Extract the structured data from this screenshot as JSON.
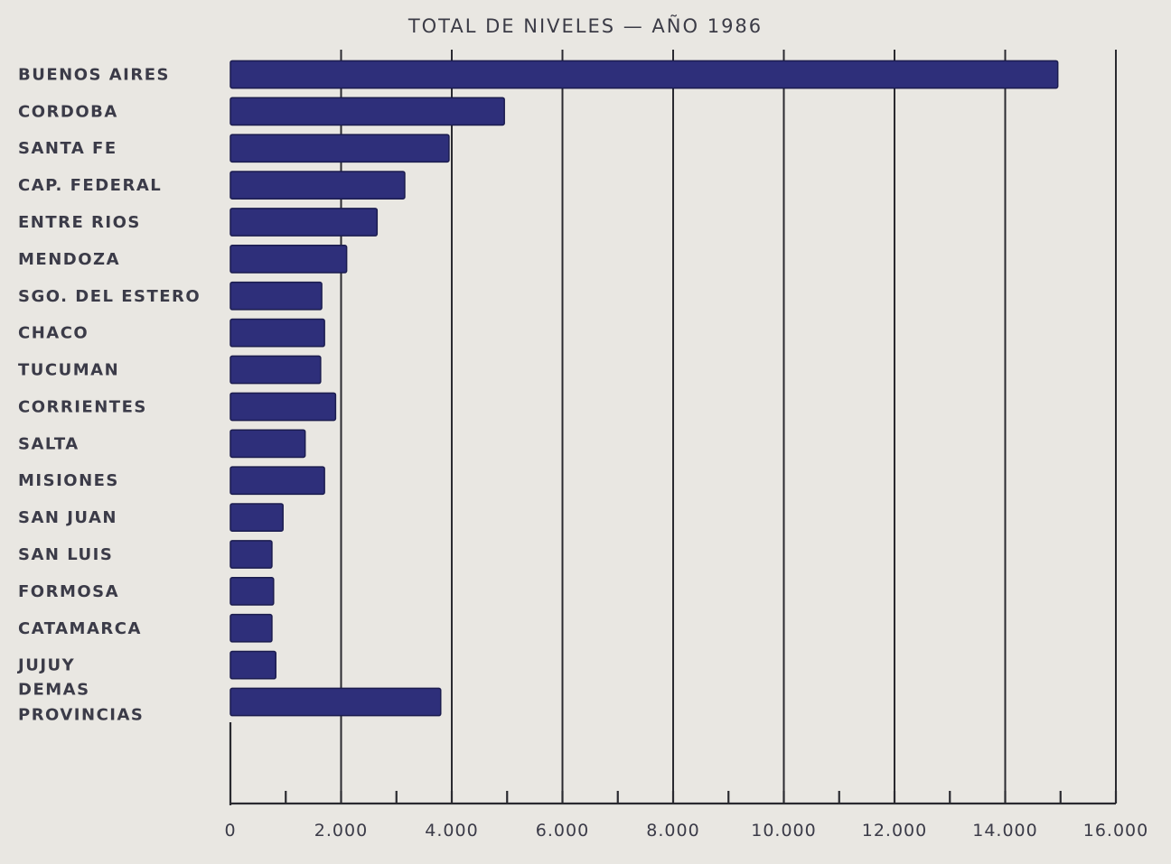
{
  "chart_data": {
    "type": "bar",
    "orientation": "horizontal",
    "title": "TOTAL DE NIVELES — AÑO 1986",
    "categories": [
      "BUENOS AIRES",
      "CORDOBA",
      "SANTA FE",
      "CAP. FEDERAL",
      "ENTRE RIOS",
      "MENDOZA",
      "SGO. DEL ESTERO",
      "CHACO",
      "TUCUMAN",
      "CORRIENTES",
      "SALTA",
      "MISIONES",
      "SAN JUAN",
      "SAN LUIS",
      "FORMOSA",
      "CATAMARCA",
      "JUJUY",
      "DEMAS PROVINCIAS"
    ],
    "category_lines": [
      [
        "BUENOS AIRES"
      ],
      [
        "CORDOBA"
      ],
      [
        "SANTA FE"
      ],
      [
        "CAP. FEDERAL"
      ],
      [
        "ENTRE RIOS"
      ],
      [
        "MENDOZA"
      ],
      [
        "SGO. DEL ESTERO"
      ],
      [
        "CHACO"
      ],
      [
        "TUCUMAN"
      ],
      [
        "CORRIENTES"
      ],
      [
        "SALTA"
      ],
      [
        "MISIONES"
      ],
      [
        "SAN JUAN"
      ],
      [
        "SAN LUIS"
      ],
      [
        "FORMOSA"
      ],
      [
        "CATAMARCA"
      ],
      [
        "JUJUY"
      ],
      [
        "DEMAS",
        "PROVINCIAS"
      ]
    ],
    "values": [
      14950,
      4950,
      3950,
      3150,
      2650,
      2100,
      1650,
      1700,
      1630,
      1900,
      1350,
      1700,
      950,
      750,
      780,
      750,
      820,
      3800
    ],
    "xlim": [
      0,
      16000
    ],
    "x_ticks": [
      0,
      2000,
      4000,
      6000,
      8000,
      10000,
      12000,
      14000,
      16000
    ],
    "x_tick_labels": [
      "0",
      "2.000",
      "4.000",
      "6.000",
      "8.000",
      "10.000",
      "12.000",
      "14.000",
      "16.000"
    ],
    "grid": true,
    "bar_color": "#2e2f7a",
    "background": "#e9e7e2"
  }
}
